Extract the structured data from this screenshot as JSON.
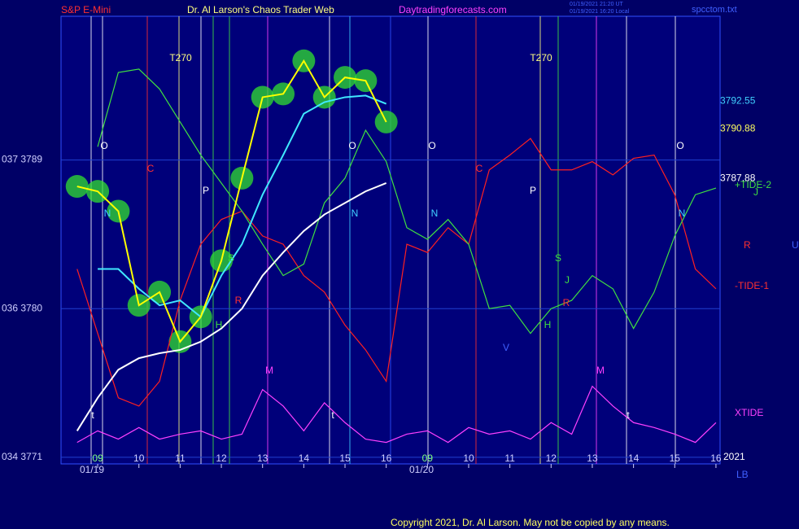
{
  "chart_data": {
    "type": "line",
    "title": "Dr. Al Larson's Chaos Trader Web",
    "subtitle": "S&P E-Mini",
    "site": "Daytradingforecasts.com",
    "timestamps": [
      "01/19/2021 21:20 UT",
      "01/19/2021 16:20 Local"
    ],
    "file": "spcctom.txt",
    "dates": [
      "01/19",
      "01/20"
    ],
    "year": "2021",
    "corner_label": "LB",
    "copyright": "Copyright 2021, Dr. Al Larson. May not be copied by any means.",
    "x": [
      -0.5,
      0,
      0.5,
      1,
      1.5,
      2,
      2.5,
      3,
      3.5,
      4,
      4.5,
      5,
      5.5,
      6,
      6.5,
      7,
      7.5,
      8,
      8.5,
      9,
      9.5,
      10,
      10.5,
      11,
      11.5,
      12,
      12.5,
      13,
      13.5,
      14,
      14.5,
      15
    ],
    "xlim": [
      -0.89,
      15.1
    ],
    "xticks": [
      {
        "value": 0,
        "label": "09"
      },
      {
        "value": 1,
        "label": "10"
      },
      {
        "value": 2,
        "label": "11"
      },
      {
        "value": 3,
        "label": "12"
      },
      {
        "value": 4,
        "label": "13"
      },
      {
        "value": 5,
        "label": "14"
      },
      {
        "value": 6,
        "label": "15"
      },
      {
        "value": 7,
        "label": "16"
      },
      {
        "value": 8,
        "label": "09"
      },
      {
        "value": 9,
        "label": "10"
      },
      {
        "value": 10,
        "label": "11"
      },
      {
        "value": 11,
        "label": "12"
      },
      {
        "value": 12,
        "label": "13"
      },
      {
        "value": 13,
        "label": "14"
      },
      {
        "value": 14,
        "label": "15"
      },
      {
        "value": 15,
        "label": "16"
      }
    ],
    "ylim": [
      3770.6,
      3797.7
    ],
    "yticks": [
      {
        "value": 3771,
        "label": "034  3771"
      },
      {
        "value": 3780,
        "label": "036  3780"
      },
      {
        "value": 3789,
        "label": "037  3789"
      }
    ],
    "grid": true,
    "price_levels": [
      3792.55,
      3790.88,
      3787.88
    ],
    "price_level_colors": [
      "#40d0ff",
      "#ffff60",
      "#ffffff"
    ],
    "series": [
      {
        "color": "#ff2020",
        "values": [
          3782.4,
          3778.5,
          3774.6,
          3774.1,
          3775.6,
          3780.5,
          3783.9,
          3785.4,
          3785.9,
          3784.4,
          3783.9,
          3782.0,
          3781.0,
          3779.0,
          3777.5,
          3775.6,
          3783.9,
          3783.4,
          3784.9,
          3783.9,
          3788.4,
          3789.3,
          3790.3,
          3788.4,
          3788.4,
          3788.9,
          3788.1,
          3789.1,
          3789.3,
          3786.9,
          3782.4,
          3781.2
        ]
      },
      {
        "color": "#40e040",
        "values": [
          null,
          3789.8,
          3794.3,
          3794.5,
          3793.3,
          3791.3,
          3789.3,
          3787.6,
          3785.9,
          3783.9,
          3782.0,
          3782.7,
          3786.4,
          3787.9,
          3790.8,
          3788.9,
          3784.9,
          3784.2,
          3785.4,
          3783.9,
          3780.0,
          3780.2,
          3778.5,
          3780.0,
          3780.5,
          3782.0,
          3781.2,
          3778.8,
          3781.0,
          3784.4,
          3786.9,
          3787.3
        ]
      },
      {
        "color": "#ff40ff",
        "values": [
          3771.9,
          3772.6,
          3772.1,
          3772.8,
          3772.1,
          3772.4,
          3772.6,
          3772.1,
          3772.4,
          3775.1,
          3774.1,
          3772.6,
          3774.3,
          3773.1,
          3772.1,
          3771.9,
          3772.4,
          3772.6,
          3771.9,
          3772.8,
          3772.4,
          3772.6,
          3772.1,
          3773.1,
          3772.4,
          3775.3,
          3774.1,
          3773.1,
          3772.8,
          3772.4,
          3771.9,
          3773.1
        ]
      },
      {
        "color": "#ffffff",
        "values": [
          3772.6,
          3774.6,
          3776.3,
          3777.0,
          3777.3,
          3777.5,
          3778.0,
          3778.8,
          3780.0,
          3782.0,
          3783.4,
          3784.7,
          3785.7,
          3786.4,
          3787.1,
          3787.6,
          null,
          null,
          null,
          null,
          null,
          null,
          null,
          null,
          null,
          null,
          null,
          null,
          null,
          null,
          null,
          null
        ]
      },
      {
        "color": "#40e8ff",
        "values": [
          null,
          3782.4,
          3782.4,
          3781.2,
          3780.2,
          3780.5,
          3779.5,
          3782.0,
          3783.9,
          3786.9,
          3789.3,
          3791.8,
          3792.5,
          3792.8,
          3792.9,
          3792.4,
          null,
          null,
          null,
          null,
          null,
          null,
          null,
          null,
          null,
          null,
          null,
          null,
          null,
          null,
          null,
          null
        ]
      },
      {
        "color": "#ffff00",
        "values": [
          3787.4,
          3787.1,
          3785.9,
          3780.2,
          3781.0,
          3778.0,
          3779.5,
          3782.9,
          3787.9,
          3792.8,
          3793.0,
          3795.0,
          3792.8,
          3794.0,
          3793.8,
          3791.3,
          null,
          null,
          null,
          null,
          null,
          null,
          null,
          null,
          null,
          null,
          null,
          null,
          null,
          null,
          null,
          null
        ]
      }
    ],
    "annotations": [
      {
        "text": "T270",
        "color": "#ffff80"
      },
      {
        "text": "T270",
        "color": "#ffff80"
      },
      {
        "text": "O",
        "color": "#ffffff"
      },
      {
        "text": "O",
        "color": "#ffffff"
      },
      {
        "text": "O",
        "color": "#ffffff"
      },
      {
        "text": "O",
        "color": "#ffffff"
      },
      {
        "text": "C",
        "color": "#ff3030"
      },
      {
        "text": "C",
        "color": "#ff3030"
      },
      {
        "text": "P",
        "color": "#ffffff"
      },
      {
        "text": "P",
        "color": "#ffffff"
      },
      {
        "text": "N",
        "color": "#40d0ff"
      },
      {
        "text": "N",
        "color": "#40d0ff"
      },
      {
        "text": "N",
        "color": "#40d0ff"
      },
      {
        "text": "N",
        "color": "#40d0ff"
      },
      {
        "text": "M",
        "color": "#ff40ff"
      },
      {
        "text": "M",
        "color": "#ff40ff"
      },
      {
        "text": "t",
        "color": "#ffffff"
      },
      {
        "text": "t",
        "color": "#ffffff"
      },
      {
        "text": "t",
        "color": "#ffffff"
      },
      {
        "text": "H",
        "color": "#40e040"
      },
      {
        "text": "H",
        "color": "#40e040"
      },
      {
        "text": "S",
        "color": "#40e040"
      },
      {
        "text": "S",
        "color": "#40e040"
      },
      {
        "text": "J",
        "color": "#40e040"
      },
      {
        "text": "J",
        "color": "#40e040"
      },
      {
        "text": "R",
        "color": "#ff3030"
      },
      {
        "text": "R",
        "color": "#ff3030"
      },
      {
        "text": "V",
        "color": "#4060ff"
      },
      {
        "text": "+TIDE-2",
        "color": "#40e040"
      },
      {
        "text": "R",
        "color": "#ff3030"
      },
      {
        "text": "U",
        "color": "#4060ff"
      },
      {
        "text": "-TIDE-1",
        "color": "#ff3030"
      },
      {
        "text": "XTIDE",
        "color": "#ff40ff"
      }
    ]
  }
}
